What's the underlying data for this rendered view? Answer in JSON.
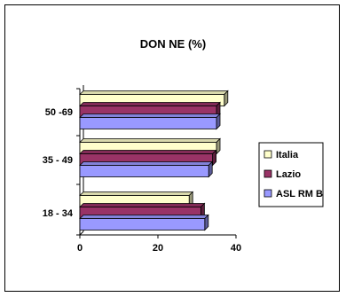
{
  "chart_data": {
    "type": "bar",
    "orientation": "horizontal",
    "title": "DON NE (%)",
    "categories": [
      "18 - 34",
      "35 - 49",
      "50 -69"
    ],
    "series": [
      {
        "name": "Italia",
        "values": [
          28,
          35,
          37
        ],
        "color": "#ffffcc"
      },
      {
        "name": "Lazio",
        "values": [
          31,
          34,
          35
        ],
        "color": "#993366"
      },
      {
        "name": "ASL RM B",
        "values": [
          32,
          33,
          35
        ],
        "color": "#9999ff"
      }
    ],
    "xlim": [
      0,
      40
    ],
    "xticks": [
      "0",
      "20",
      "40"
    ],
    "legend_position": "right",
    "grid": false,
    "style_3d": true
  }
}
